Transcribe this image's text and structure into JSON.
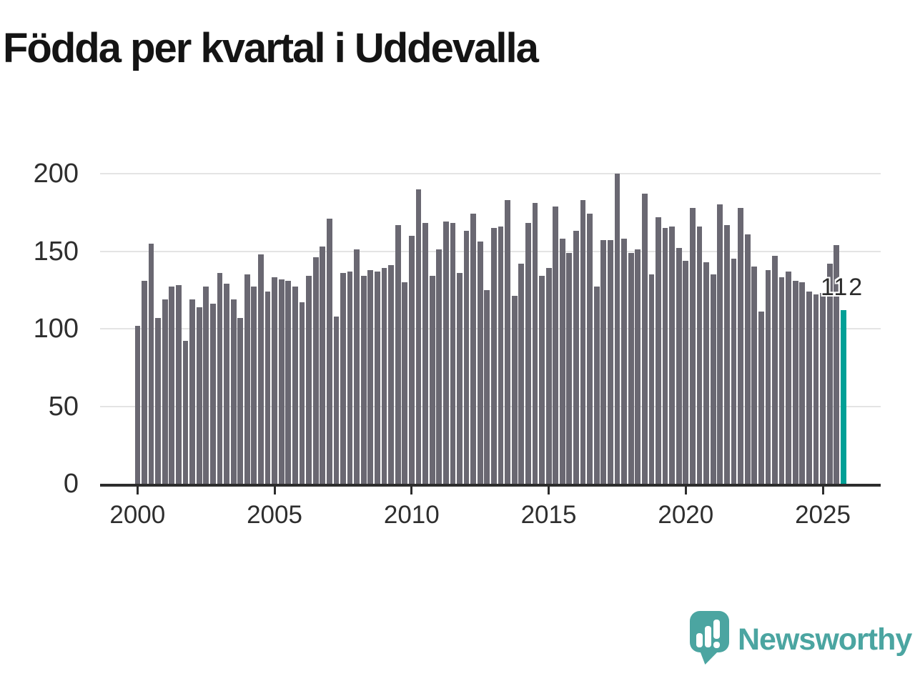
{
  "title": "Födda per kvartal i Uddevalla",
  "branding": {
    "name": "Newsworthy",
    "icon": "speech-bubble-bar-chart-icon"
  },
  "colors": {
    "bar_default": "#6a6872",
    "bar_highlight": "#00a096",
    "gridline": "#e4e4e4",
    "axis": "#2d2d2d",
    "text": "#2e2e2e",
    "title_text": "#141414",
    "logo_teal": "#4ba5a1",
    "background": "#ffffff"
  },
  "chart_data": {
    "type": "bar",
    "title": "Födda per kvartal i Uddevalla",
    "xlabel": "",
    "ylabel": "",
    "frequency": "quarterly",
    "start_period": "2000-Q1",
    "end_period": "2025-Q4",
    "ylim": [
      0,
      200
    ],
    "grid": "horizontal",
    "legend": "none",
    "y_ticks": [
      0,
      50,
      100,
      150,
      200
    ],
    "x_tick_labels": [
      "2000",
      "2005",
      "2010",
      "2015",
      "2020",
      "2025"
    ],
    "highlight": {
      "period": "2025-Q4",
      "value": 112,
      "label": "112"
    },
    "values": [
      102,
      131,
      155,
      107,
      119,
      127,
      128,
      92,
      119,
      114,
      127,
      116,
      136,
      129,
      119,
      107,
      135,
      127,
      148,
      124,
      133,
      132,
      131,
      127,
      117,
      134,
      146,
      153,
      171,
      108,
      136,
      137,
      151,
      134,
      138,
      137,
      139,
      141,
      167,
      130,
      160,
      190,
      168,
      134,
      151,
      169,
      168,
      136,
      163,
      174,
      156,
      125,
      165,
      166,
      183,
      121,
      142,
      168,
      181,
      134,
      139,
      179,
      158,
      149,
      163,
      183,
      174,
      127,
      157,
      157,
      200,
      158,
      149,
      151,
      187,
      135,
      172,
      165,
      166,
      152,
      144,
      178,
      166,
      143,
      135,
      180,
      167,
      145,
      178,
      161,
      140,
      111,
      138,
      147,
      133,
      137,
      131,
      130,
      124,
      122,
      123,
      142,
      154,
      112
    ]
  }
}
